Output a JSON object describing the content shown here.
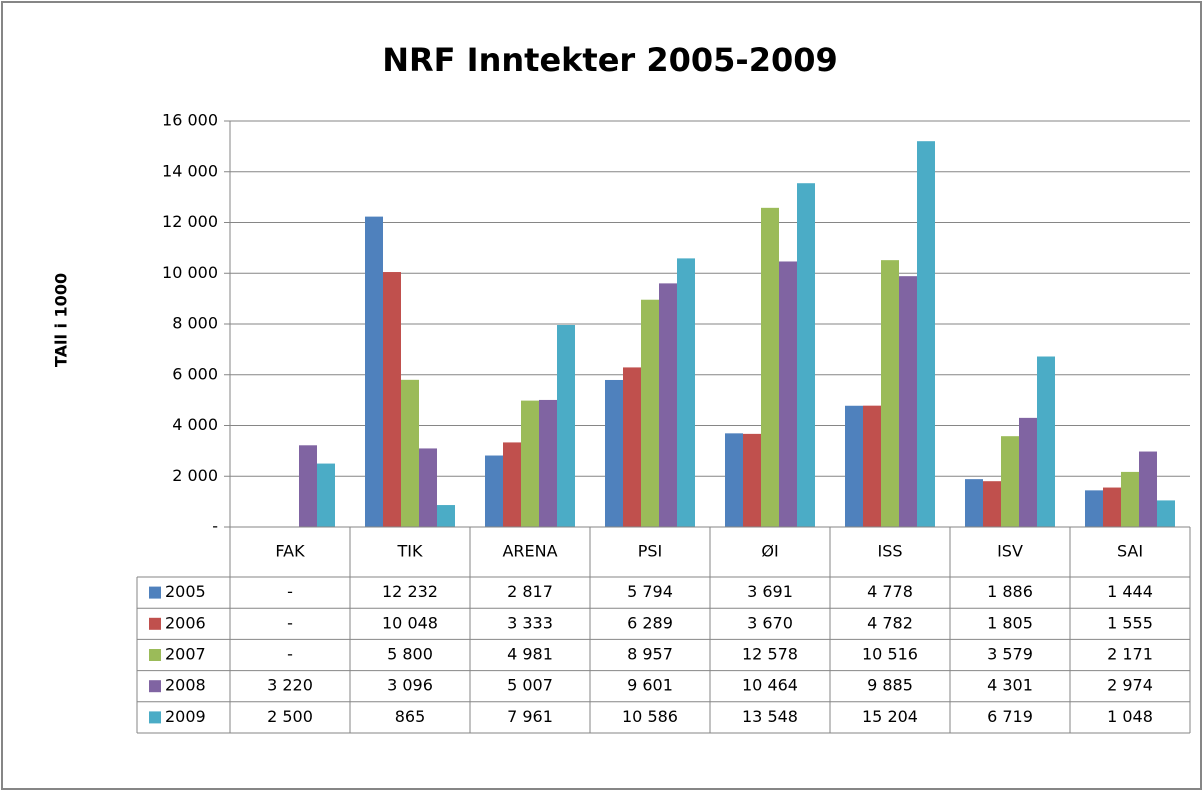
{
  "chart_data": {
    "type": "bar",
    "title": "NRF Inntekter 2005-2009",
    "y_label": "TAll i 1000",
    "categories": [
      "FAK",
      "TIK",
      "ARENA",
      "PSI",
      "ØI",
      "ISS",
      "ISV",
      "SAI"
    ],
    "series": [
      {
        "name": "2005",
        "color": "#4f81bd",
        "values": [
          0,
          12232,
          2817,
          5794,
          3691,
          4778,
          1886,
          1444
        ],
        "value_labels": [
          "-",
          "12 232",
          "2 817",
          "5 794",
          "3 691",
          "4 778",
          "1 886",
          "1 444"
        ]
      },
      {
        "name": "2006",
        "color": "#c0504d",
        "values": [
          0,
          10048,
          3333,
          6289,
          3670,
          4782,
          1805,
          1555
        ],
        "value_labels": [
          "-",
          "10 048",
          "3 333",
          "6 289",
          "3 670",
          "4 782",
          "1 805",
          "1 555"
        ]
      },
      {
        "name": "2007",
        "color": "#9bbb59",
        "values": [
          0,
          5800,
          4981,
          8957,
          12578,
          10516,
          3579,
          2171
        ],
        "value_labels": [
          "-",
          "5 800",
          "4 981",
          "8 957",
          "12 578",
          "10 516",
          "3 579",
          "2 171"
        ]
      },
      {
        "name": "2008",
        "color": "#8064a2",
        "values": [
          3220,
          3096,
          5007,
          9601,
          10464,
          9885,
          4301,
          2974
        ],
        "value_labels": [
          "3 220",
          "3 096",
          "5 007",
          "9 601",
          "10 464",
          "9 885",
          "4 301",
          "2 974"
        ]
      },
      {
        "name": "2009",
        "color": "#4bacc6",
        "values": [
          2500,
          865,
          7961,
          10586,
          13548,
          15204,
          6719,
          1048
        ],
        "value_labels": [
          "2 500",
          "865",
          "7 961",
          "10 586",
          "13 548",
          "15 204",
          "6 719",
          "1 048"
        ]
      }
    ],
    "ylim": [
      0,
      16000
    ],
    "yticks": [
      {
        "value": 0,
        "label": "-"
      },
      {
        "value": 2000,
        "label": "2 000"
      },
      {
        "value": 4000,
        "label": "4 000"
      },
      {
        "value": 6000,
        "label": "6 000"
      },
      {
        "value": 8000,
        "label": "8 000"
      },
      {
        "value": 10000,
        "label": "10 000"
      },
      {
        "value": 12000,
        "label": "12 000"
      },
      {
        "value": 14000,
        "label": "14 000"
      },
      {
        "value": 16000,
        "label": "16 000"
      }
    ],
    "grid": true
  }
}
